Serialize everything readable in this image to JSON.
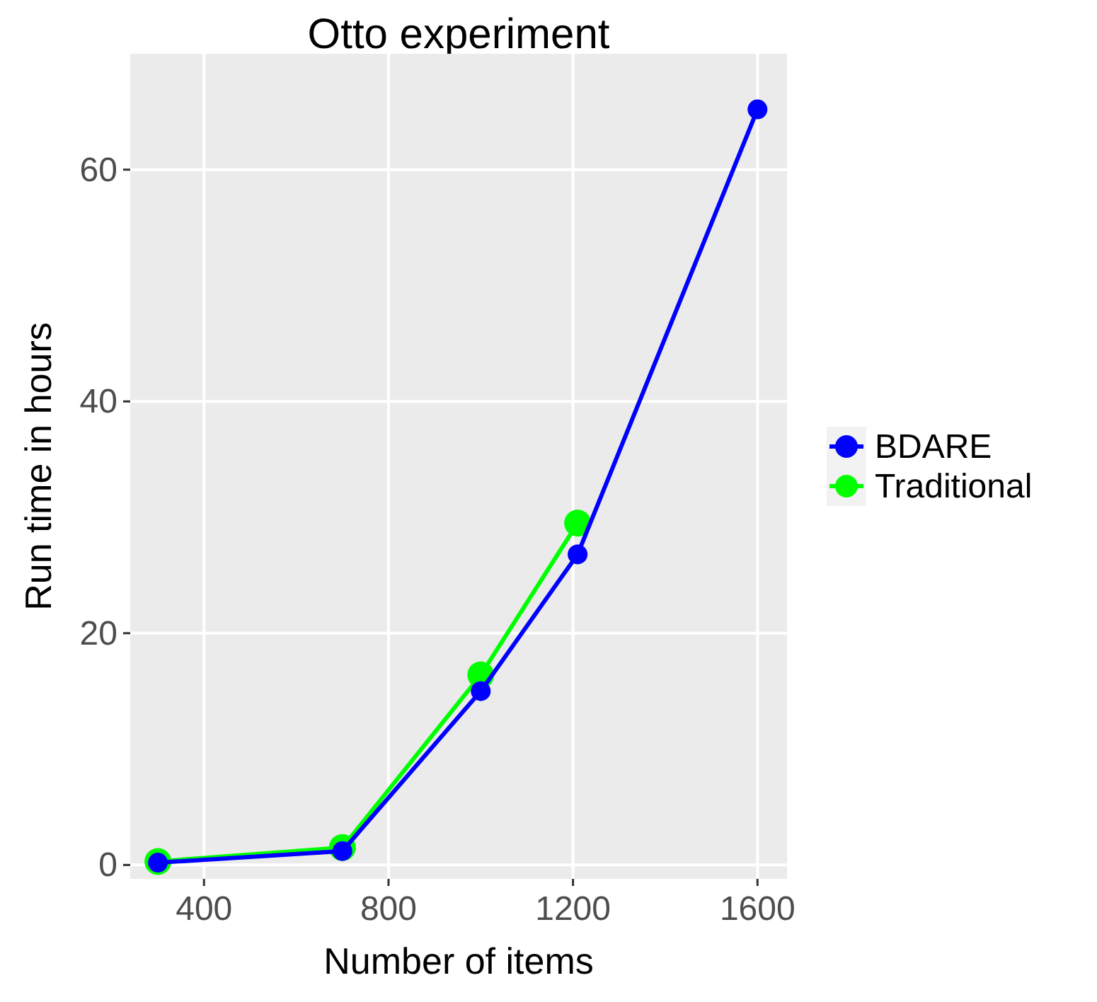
{
  "chart_data": {
    "type": "line",
    "title": "Otto experiment",
    "xlabel": "Number of items",
    "ylabel": "Run time in hours",
    "xlim": [
      240,
      1664
    ],
    "ylim": [
      -1.2,
      70
    ],
    "xticks": [
      400,
      800,
      1200,
      1600
    ],
    "yticks": [
      0,
      20,
      40,
      60
    ],
    "grid": true,
    "legend": "right",
    "marker": "circle",
    "line_style": "solid",
    "series": [
      {
        "name": "BDARE",
        "color": "#0000ff",
        "x": [
          300,
          700,
          1000,
          1210,
          1600
        ],
        "values": [
          0.2,
          1.2,
          15.0,
          26.8,
          65.2
        ]
      },
      {
        "name": "Traditional",
        "color": "#00ff00",
        "x": [
          300,
          700,
          1000,
          1210
        ],
        "values": [
          0.3,
          1.5,
          16.4,
          29.5
        ]
      }
    ]
  }
}
